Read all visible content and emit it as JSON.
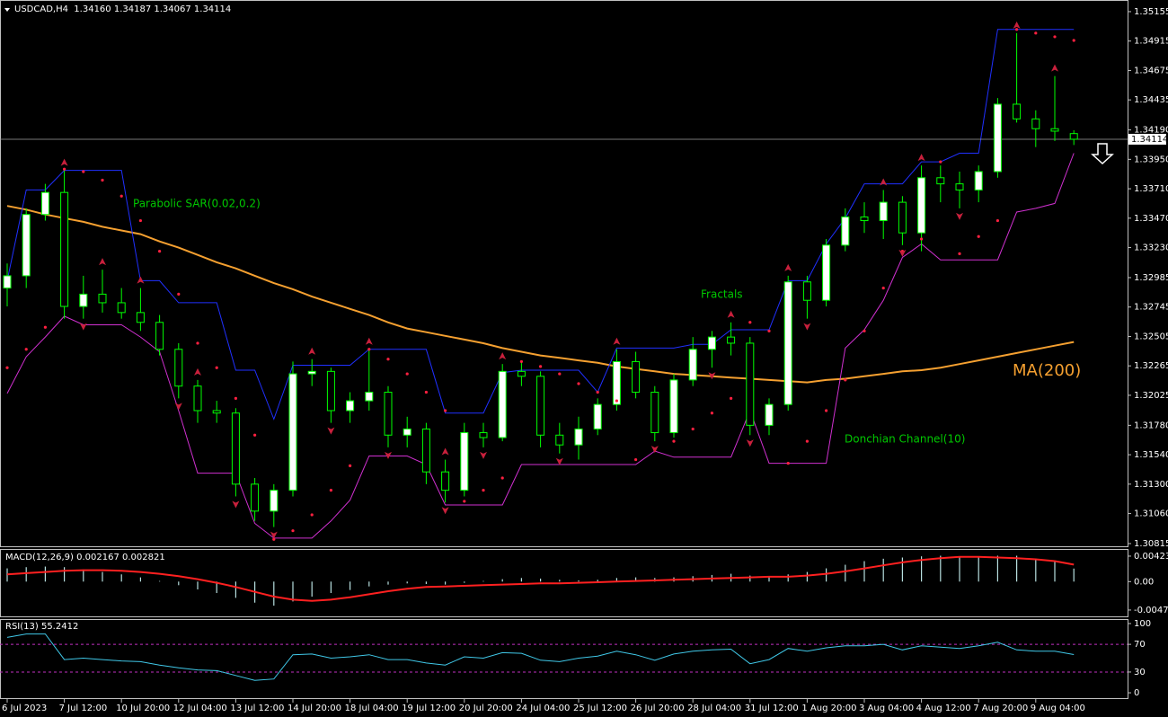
{
  "chart_data": [
    {
      "type": "candlestick",
      "title": "USDCAD,H4  1.34160 1.34187 1.34067 1.34114",
      "categories": [
        "6 Jul 2023",
        null,
        null,
        "7 Jul 12:00",
        null,
        null,
        "10 Jul 20:00",
        null,
        null,
        "12 Jul 04:00",
        null,
        null,
        "13 Jul 12:00",
        null,
        null,
        "14 Jul 20:00",
        null,
        null,
        "18 Jul 04:00",
        null,
        null,
        "19 Jul 12:00",
        null,
        null,
        "20 Jul 20:00",
        null,
        null,
        "24 Jul 04:00",
        null,
        null,
        "25 Jul 12:00",
        null,
        null,
        "26 Jul 20:00",
        null,
        null,
        "28 Jul 04:00",
        null,
        null,
        "31 Jul 12:00",
        null,
        null,
        "1 Aug 20:00",
        null,
        null,
        "3 Aug 04:00",
        null,
        null,
        "4 Aug 12:00",
        null,
        null,
        "7 Aug 20:00",
        null,
        null,
        "9 Aug 04:00",
        null,
        null
      ],
      "open": [
        1.329,
        1.33,
        1.335,
        1.3368,
        1.3275,
        1.3285,
        1.3278,
        1.327,
        1.3262,
        1.324,
        1.321,
        1.319,
        1.3188,
        1.313,
        1.3108,
        1.3125,
        1.322,
        1.3222,
        1.319,
        1.3198,
        1.3205,
        1.317,
        1.3175,
        1.314,
        1.3125,
        1.3172,
        1.3168,
        1.3222,
        1.3218,
        1.317,
        1.3162,
        1.3175,
        1.3195,
        1.323,
        1.3205,
        1.3172,
        1.3215,
        1.324,
        1.325,
        1.3245,
        1.3178,
        1.3195,
        1.3295,
        1.328,
        1.3325,
        1.3348,
        1.3345,
        1.336,
        1.3335,
        1.338,
        1.3375,
        1.337,
        1.3385,
        1.344,
        1.3428,
        1.342,
        1.3416
      ],
      "high": [
        1.331,
        1.3355,
        1.3375,
        1.3386,
        1.33,
        1.3305,
        1.329,
        1.329,
        1.3268,
        1.3245,
        1.3215,
        1.3198,
        1.3192,
        1.3135,
        1.313,
        1.323,
        1.3232,
        1.3225,
        1.3205,
        1.324,
        1.321,
        1.3185,
        1.318,
        1.315,
        1.318,
        1.318,
        1.3228,
        1.323,
        1.3222,
        1.318,
        1.3185,
        1.32,
        1.324,
        1.3238,
        1.321,
        1.322,
        1.325,
        1.3255,
        1.3262,
        1.325,
        1.32,
        1.33,
        1.33,
        1.333,
        1.3355,
        1.336,
        1.337,
        1.3365,
        1.339,
        1.339,
        1.3385,
        1.339,
        1.3445,
        1.3498,
        1.3435,
        1.3463,
        1.34187
      ],
      "low": [
        1.3275,
        1.329,
        1.3345,
        1.3265,
        1.3265,
        1.327,
        1.3265,
        1.3255,
        1.3235,
        1.32,
        1.318,
        1.318,
        1.312,
        1.31,
        1.3095,
        1.312,
        1.321,
        1.318,
        1.318,
        1.319,
        1.316,
        1.316,
        1.313,
        1.3115,
        1.312,
        1.316,
        1.3165,
        1.321,
        1.316,
        1.3155,
        1.315,
        1.317,
        1.319,
        1.32,
        1.3165,
        1.3168,
        1.321,
        1.3225,
        1.3235,
        1.317,
        1.317,
        1.319,
        1.3265,
        1.3275,
        1.332,
        1.3335,
        1.333,
        1.3325,
        1.332,
        1.336,
        1.3355,
        1.336,
        1.338,
        1.3425,
        1.3405,
        1.341,
        1.34067
      ],
      "close": [
        1.33,
        1.335,
        1.3368,
        1.3275,
        1.3285,
        1.3278,
        1.327,
        1.3262,
        1.324,
        1.321,
        1.319,
        1.3188,
        1.313,
        1.3108,
        1.3125,
        1.322,
        1.3222,
        1.319,
        1.3198,
        1.3205,
        1.317,
        1.3175,
        1.314,
        1.3125,
        1.3172,
        1.3168,
        1.3222,
        1.3218,
        1.317,
        1.3162,
        1.3175,
        1.3195,
        1.323,
        1.3205,
        1.3172,
        1.3215,
        1.324,
        1.325,
        1.3245,
        1.3178,
        1.3195,
        1.3295,
        1.328,
        1.3325,
        1.3348,
        1.3345,
        1.336,
        1.3335,
        1.338,
        1.3375,
        1.337,
        1.3385,
        1.344,
        1.3428,
        1.342,
        1.3418,
        1.34114
      ],
      "up_color": "#ffffff",
      "down_color": "#000000",
      "wick_color": "#00ff00",
      "ylim": [
        1.30793,
        1.3525
      ],
      "yticks": [
        1.35155,
        1.34915,
        1.34675,
        1.34435,
        {
          "value": 1.3419,
          "label": "1.34190"
        },
        {
          "value": 1.3395,
          "label": "1.33950"
        },
        {
          "value": 1.3371,
          "label": "1.33710"
        },
        {
          "value": 1.3347,
          "label": "1.33470"
        },
        {
          "value": 1.3323,
          "label": "1.33230"
        },
        1.32985,
        1.32745,
        1.32505,
        1.32265,
        1.32025,
        {
          "value": 1.3178,
          "label": "1.31780"
        },
        {
          "value": 1.3154,
          "label": "1.31540"
        },
        {
          "value": 1.313,
          "label": "1.31300"
        },
        {
          "value": 1.3106,
          "label": "1.31060"
        },
        1.30815
      ],
      "last_price": {
        "value": 1.34114,
        "label": "1.34114"
      },
      "ma": {
        "name": "MA(200)",
        "color": "#f5a030",
        "values": [
          1.3357,
          1.3354,
          1.335,
          1.3347,
          1.3344,
          1.334,
          1.3337,
          1.3334,
          1.3328,
          1.3323,
          1.3317,
          1.3311,
          1.3306,
          1.33,
          1.3294,
          1.3289,
          1.3283,
          1.3278,
          1.3273,
          1.3268,
          1.3262,
          1.3257,
          1.3254,
          1.3251,
          1.3248,
          1.3245,
          1.3241,
          1.3238,
          1.3235,
          1.3233,
          1.3231,
          1.3229,
          1.3226,
          1.3224,
          1.3222,
          1.322,
          1.3219,
          1.3218,
          1.3217,
          1.3216,
          1.3215,
          1.3214,
          1.3213,
          1.3215,
          1.3216,
          1.3218,
          1.322,
          1.3222,
          1.3223,
          1.3225,
          1.3228,
          1.3231,
          1.3234,
          1.3237,
          1.324,
          1.3243,
          1.3246
        ]
      },
      "donchian": {
        "name": "Donchian Channel(10)",
        "upper_color": "#2030ff",
        "lower_color": "#d030d0",
        "upper": [
          1.3296,
          1.337,
          1.337,
          1.3386,
          1.3386,
          1.3386,
          1.3386,
          1.3296,
          1.3296,
          1.3278,
          1.3278,
          1.3278,
          1.3223,
          1.3223,
          1.3183,
          1.3227,
          1.3227,
          1.3227,
          1.3227,
          1.324,
          1.324,
          1.324,
          1.324,
          1.3188,
          1.3188,
          1.3188,
          1.3221,
          1.3223,
          1.3223,
          1.3223,
          1.3223,
          1.3205,
          1.3241,
          1.3241,
          1.3241,
          1.3241,
          1.3244,
          1.3244,
          1.3256,
          1.3256,
          1.3256,
          1.3296,
          1.3296,
          1.3326,
          1.3347,
          1.3375,
          1.3375,
          1.3375,
          1.3393,
          1.3393,
          1.34,
          1.34,
          1.3501,
          1.3501,
          1.3501,
          1.3501,
          1.3501
        ],
        "lower": [
          1.3204,
          1.3234,
          1.325,
          1.3267,
          1.326,
          1.326,
          1.326,
          1.325,
          1.3238,
          1.319,
          1.3139,
          1.3139,
          1.3139,
          1.3098,
          1.3086,
          1.3086,
          1.3086,
          1.31,
          1.3117,
          1.3153,
          1.3153,
          1.3153,
          1.3146,
          1.3113,
          1.3113,
          1.3113,
          1.3113,
          1.3146,
          1.3146,
          1.3146,
          1.3146,
          1.3146,
          1.3146,
          1.3146,
          1.3157,
          1.3152,
          1.3152,
          1.3152,
          1.3152,
          1.319,
          1.3147,
          1.3147,
          1.3147,
          1.3147,
          1.3241,
          1.3256,
          1.328,
          1.3315,
          1.3326,
          1.3313,
          1.3313,
          1.3313,
          1.3313,
          1.3352,
          1.3355,
          1.3359,
          1.34
        ]
      },
      "sar": {
        "name": "Parabolic SAR(0.02,0.2)",
        "color": "#ff2040",
        "values": [
          1.3225,
          1.324,
          1.3258,
          1.3387,
          1.3385,
          1.3378,
          1.3365,
          1.3345,
          1.332,
          1.3285,
          1.3245,
          1.3225,
          1.32,
          1.317,
          1.3085,
          1.3092,
          1.3105,
          1.3125,
          1.3145,
          1.324,
          1.3232,
          1.322,
          1.3205,
          1.319,
          1.3116,
          1.3125,
          1.3135,
          1.323,
          1.3226,
          1.322,
          1.3212,
          1.3205,
          1.3198,
          1.315,
          1.3158,
          1.3165,
          1.3175,
          1.3188,
          1.32,
          1.3262,
          1.3255,
          1.3147,
          1.3165,
          1.319,
          1.3215,
          1.3255,
          1.329,
          1.332,
          1.333,
          1.3393,
          1.3318,
          1.3332,
          1.3345,
          1.3501,
          1.3498,
          1.3495,
          1.3492
        ]
      },
      "fractals": {
        "name": "Fractals",
        "color": "#c8203c",
        "up": [
          null,
          null,
          null,
          1.3386,
          null,
          1.3305,
          null,
          1.329,
          null,
          null,
          1.3215,
          null,
          null,
          null,
          null,
          null,
          1.3232,
          null,
          null,
          1.324,
          null,
          null,
          null,
          1.315,
          null,
          null,
          1.3228,
          null,
          null,
          null,
          null,
          null,
          1.324,
          null,
          null,
          null,
          null,
          null,
          1.3262,
          null,
          null,
          1.33,
          null,
          null,
          null,
          null,
          1.337,
          null,
          1.339,
          null,
          null,
          null,
          null,
          1.3498,
          null,
          1.3463,
          null
        ],
        "down": [
          null,
          null,
          null,
          null,
          1.3265,
          null,
          null,
          null,
          null,
          1.32,
          null,
          null,
          1.312,
          null,
          1.3095,
          null,
          null,
          1.318,
          null,
          null,
          1.316,
          null,
          null,
          1.3115,
          null,
          1.316,
          null,
          null,
          null,
          1.3155,
          null,
          null,
          null,
          null,
          1.3165,
          null,
          null,
          1.3225,
          null,
          1.317,
          null,
          null,
          1.3265,
          null,
          null,
          null,
          null,
          1.3325,
          null,
          null,
          1.3355,
          null,
          null,
          null,
          null,
          null,
          null
        ]
      }
    },
    {
      "type": "bar",
      "title": "MACD(12,26,9) 0.002167 0.002821",
      "values": [
        0.0022,
        0.0024,
        0.0025,
        0.0024,
        0.002,
        0.0016,
        0.0012,
        0.0007,
        0.0001,
        -0.0006,
        -0.0013,
        -0.0019,
        -0.0027,
        -0.0035,
        -0.004,
        -0.0033,
        -0.0025,
        -0.0019,
        -0.0014,
        -0.0008,
        -0.0005,
        -0.0003,
        -0.0004,
        -0.0005,
        -0.0002,
        0.0001,
        0.0004,
        0.0006,
        0.0005,
        0.0003,
        0.0002,
        0.0003,
        0.0006,
        0.0007,
        0.0006,
        0.0007,
        0.0009,
        0.0011,
        0.0013,
        0.001,
        0.0008,
        0.0012,
        0.0016,
        0.0022,
        0.0028,
        0.0034,
        0.0038,
        0.004,
        0.0042,
        0.0043,
        0.0042,
        0.0041,
        0.0043,
        0.0043,
        0.0038,
        0.0033,
        0.002167
      ],
      "color": "#b8e0e0",
      "signal": {
        "color": "#ff2020",
        "values": [
          0.0012,
          0.0014,
          0.0016,
          0.0018,
          0.0019,
          0.0019,
          0.0018,
          0.0016,
          0.0013,
          0.0009,
          0.0004,
          -0.0002,
          -0.0009,
          -0.0017,
          -0.0025,
          -0.003,
          -0.0032,
          -0.003,
          -0.0026,
          -0.0021,
          -0.0016,
          -0.0012,
          -0.0009,
          -0.0008,
          -0.0007,
          -0.0006,
          -0.0005,
          -0.0004,
          -0.0003,
          -0.0003,
          -0.0002,
          -0.0001,
          0.0,
          0.0001,
          0.0002,
          0.0003,
          0.0004,
          0.0005,
          0.0006,
          0.0007,
          0.0008,
          0.0008,
          0.001,
          0.0013,
          0.0017,
          0.0022,
          0.0027,
          0.0032,
          0.0036,
          0.0039,
          0.0041,
          0.0041,
          0.004,
          0.0039,
          0.0037,
          0.0034,
          0.002821
        ]
      },
      "ylim": [
        -0.00578,
        0.00542
      ],
      "yticks": [
        0.004232,
        {
          "value": 0,
          "label": "0.00"
        },
        -0.004725
      ]
    },
    {
      "type": "line",
      "title": "RSI(13) 55.2412",
      "values": [
        80,
        85,
        85,
        48,
        50,
        48,
        46,
        45,
        40,
        36,
        33,
        32,
        25,
        18,
        20,
        55,
        56,
        50,
        52,
        55,
        48,
        48,
        43,
        40,
        52,
        50,
        58,
        57,
        47,
        45,
        50,
        53,
        60,
        55,
        47,
        56,
        60,
        62,
        63,
        42,
        48,
        64,
        60,
        65,
        68,
        68,
        70,
        62,
        68,
        66,
        64,
        68,
        73,
        62,
        60,
        60,
        55.2412
      ],
      "color": "#40c8e8",
      "levels": [
        70,
        30
      ],
      "level_color": "#c030c0",
      "ylim": [
        -9,
        106.5
      ],
      "yticks": [
        100,
        70,
        30,
        0
      ]
    }
  ]
}
